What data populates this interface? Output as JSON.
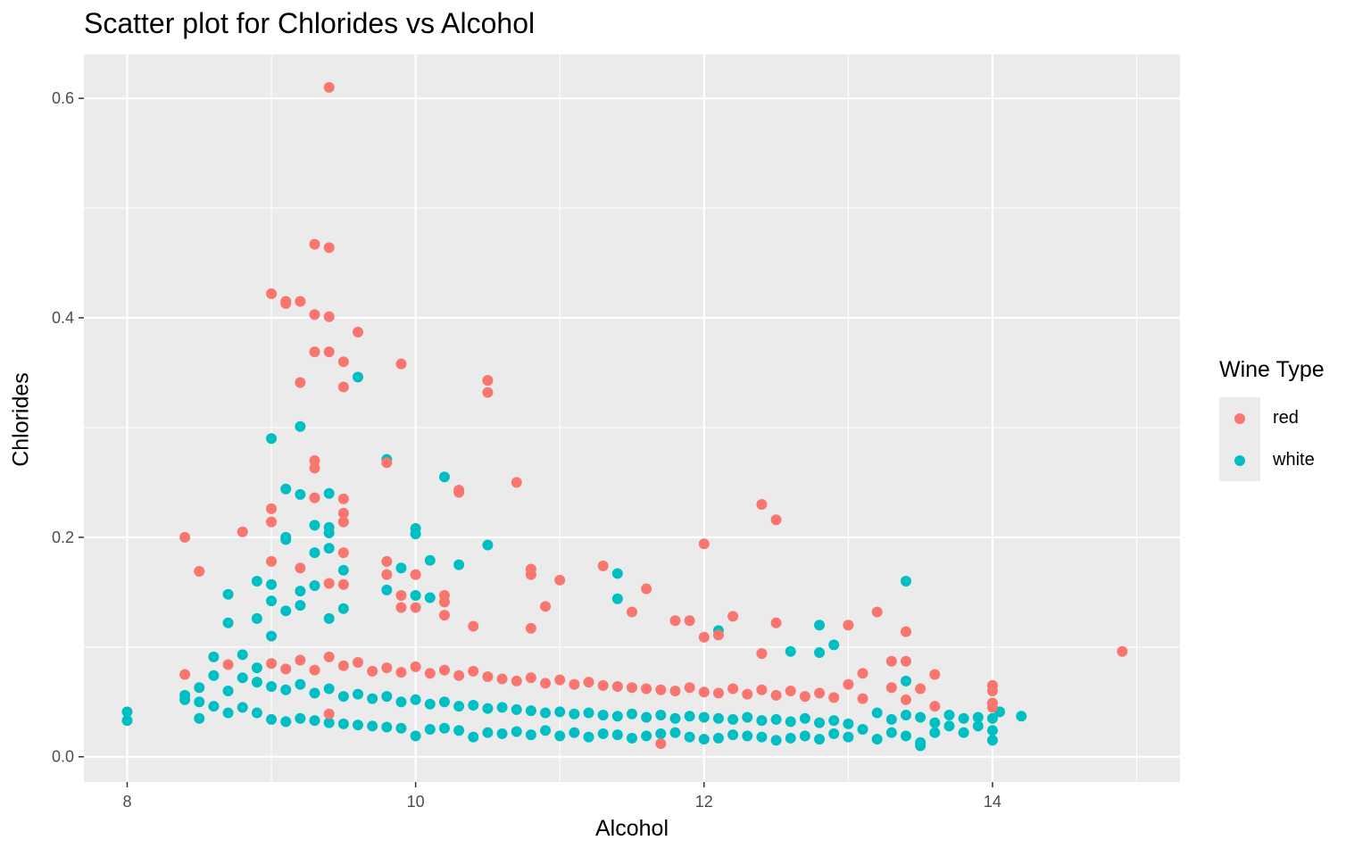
{
  "chart_data": {
    "type": "scatter",
    "title": "Scatter plot for Chlorides vs Alcohol",
    "xlabel": "Alcohol",
    "ylabel": "Chlorides",
    "xlim": [
      7.7,
      15.3
    ],
    "ylim": [
      -0.023,
      0.64
    ],
    "xticks": [
      8,
      10,
      12,
      14
    ],
    "xtick_labels": [
      "8",
      "10",
      "12",
      "14"
    ],
    "yticks": [
      0.0,
      0.2,
      0.4,
      0.6
    ],
    "ytick_labels": [
      "0.0",
      "0.2",
      "0.4",
      "0.6"
    ],
    "grid": true,
    "legend": {
      "title": "Wine Type",
      "position": "right"
    },
    "series": [
      {
        "name": "red",
        "color": "#F8766D",
        "points": [
          [
            9.4,
            0.61
          ],
          [
            9.3,
            0.467
          ],
          [
            9.4,
            0.464
          ],
          [
            9.0,
            0.422
          ],
          [
            9.1,
            0.415
          ],
          [
            9.2,
            0.415
          ],
          [
            9.1,
            0.413
          ],
          [
            9.3,
            0.403
          ],
          [
            9.4,
            0.401
          ],
          [
            9.6,
            0.387
          ],
          [
            9.3,
            0.369
          ],
          [
            9.4,
            0.369
          ],
          [
            9.5,
            0.36
          ],
          [
            9.9,
            0.358
          ],
          [
            10.5,
            0.343
          ],
          [
            9.2,
            0.341
          ],
          [
            9.5,
            0.337
          ],
          [
            10.5,
            0.332
          ],
          [
            9.3,
            0.27
          ],
          [
            9.8,
            0.268
          ],
          [
            9.3,
            0.263
          ],
          [
            10.7,
            0.25
          ],
          [
            10.3,
            0.243
          ],
          [
            10.3,
            0.241
          ],
          [
            9.3,
            0.236
          ],
          [
            9.5,
            0.235
          ],
          [
            12.4,
            0.23
          ],
          [
            9.0,
            0.226
          ],
          [
            9.5,
            0.222
          ],
          [
            12.5,
            0.216
          ],
          [
            9.0,
            0.214
          ],
          [
            9.5,
            0.214
          ],
          [
            8.8,
            0.205
          ],
          [
            8.4,
            0.2
          ],
          [
            12.0,
            0.194
          ],
          [
            9.5,
            0.186
          ],
          [
            9.8,
            0.178
          ],
          [
            9.0,
            0.178
          ],
          [
            11.3,
            0.174
          ],
          [
            9.2,
            0.172
          ],
          [
            10.8,
            0.171
          ],
          [
            8.5,
            0.169
          ],
          [
            9.8,
            0.166
          ],
          [
            10.0,
            0.166
          ],
          [
            10.8,
            0.166
          ],
          [
            11.0,
            0.161
          ],
          [
            9.4,
            0.158
          ],
          [
            9.5,
            0.157
          ],
          [
            11.6,
            0.153
          ],
          [
            9.9,
            0.147
          ],
          [
            10.2,
            0.147
          ],
          [
            10.2,
            0.141
          ],
          [
            10.9,
            0.137
          ],
          [
            9.9,
            0.136
          ],
          [
            10.0,
            0.136
          ],
          [
            11.5,
            0.132
          ],
          [
            13.2,
            0.132
          ],
          [
            10.2,
            0.129
          ],
          [
            12.2,
            0.128
          ],
          [
            11.8,
            0.124
          ],
          [
            11.9,
            0.124
          ],
          [
            12.5,
            0.122
          ],
          [
            13.0,
            0.12
          ],
          [
            10.4,
            0.119
          ],
          [
            10.8,
            0.117
          ],
          [
            13.4,
            0.114
          ],
          [
            12.1,
            0.111
          ],
          [
            12.0,
            0.109
          ],
          [
            14.9,
            0.096
          ],
          [
            12.4,
            0.094
          ],
          [
            13.4,
            0.087
          ],
          [
            13.3,
            0.087
          ],
          [
            13.1,
            0.076
          ],
          [
            13.6,
            0.075
          ],
          [
            8.4,
            0.075
          ],
          [
            8.7,
            0.084
          ],
          [
            9.0,
            0.085
          ],
          [
            9.1,
            0.08
          ],
          [
            9.2,
            0.088
          ],
          [
            9.3,
            0.079
          ],
          [
            9.4,
            0.091
          ],
          [
            9.5,
            0.083
          ],
          [
            9.6,
            0.086
          ],
          [
            9.7,
            0.078
          ],
          [
            9.8,
            0.081
          ],
          [
            9.9,
            0.077
          ],
          [
            10.0,
            0.082
          ],
          [
            10.1,
            0.076
          ],
          [
            10.2,
            0.079
          ],
          [
            10.3,
            0.074
          ],
          [
            10.4,
            0.078
          ],
          [
            10.5,
            0.073
          ],
          [
            10.6,
            0.071
          ],
          [
            10.7,
            0.069
          ],
          [
            10.8,
            0.072
          ],
          [
            10.9,
            0.067
          ],
          [
            11.0,
            0.07
          ],
          [
            11.1,
            0.066
          ],
          [
            11.2,
            0.068
          ],
          [
            11.3,
            0.065
          ],
          [
            11.4,
            0.064
          ],
          [
            11.5,
            0.063
          ],
          [
            11.6,
            0.062
          ],
          [
            11.7,
            0.061
          ],
          [
            11.8,
            0.06
          ],
          [
            11.9,
            0.063
          ],
          [
            12.0,
            0.059
          ],
          [
            12.1,
            0.058
          ],
          [
            12.2,
            0.062
          ],
          [
            12.3,
            0.057
          ],
          [
            12.4,
            0.061
          ],
          [
            12.5,
            0.056
          ],
          [
            12.6,
            0.06
          ],
          [
            12.7,
            0.055
          ],
          [
            12.8,
            0.058
          ],
          [
            12.9,
            0.054
          ],
          [
            13.0,
            0.066
          ],
          [
            13.1,
            0.053
          ],
          [
            13.3,
            0.063
          ],
          [
            13.4,
            0.052
          ],
          [
            13.5,
            0.062
          ],
          [
            13.6,
            0.046
          ],
          [
            14.0,
            0.065
          ],
          [
            14.0,
            0.06
          ],
          [
            14.0,
            0.049
          ],
          [
            14.0,
            0.045
          ],
          [
            11.7,
            0.012
          ],
          [
            9.4,
            0.039
          ]
        ]
      },
      {
        "name": "white",
        "color": "#00BFC4",
        "points": [
          [
            9.6,
            0.346
          ],
          [
            9.2,
            0.301
          ],
          [
            9.0,
            0.29
          ],
          [
            9.8,
            0.271
          ],
          [
            10.2,
            0.255
          ],
          [
            9.1,
            0.244
          ],
          [
            9.4,
            0.24
          ],
          [
            9.2,
            0.239
          ],
          [
            9.3,
            0.211
          ],
          [
            9.4,
            0.209
          ],
          [
            10.0,
            0.208
          ],
          [
            9.4,
            0.204
          ],
          [
            10.0,
            0.203
          ],
          [
            9.1,
            0.2
          ],
          [
            9.1,
            0.198
          ],
          [
            10.5,
            0.193
          ],
          [
            9.4,
            0.19
          ],
          [
            9.3,
            0.186
          ],
          [
            10.1,
            0.179
          ],
          [
            10.3,
            0.175
          ],
          [
            9.9,
            0.172
          ],
          [
            9.5,
            0.17
          ],
          [
            11.4,
            0.167
          ],
          [
            13.4,
            0.16
          ],
          [
            8.9,
            0.16
          ],
          [
            9.0,
            0.157
          ],
          [
            9.3,
            0.156
          ],
          [
            9.8,
            0.152
          ],
          [
            9.2,
            0.151
          ],
          [
            8.7,
            0.148
          ],
          [
            10.0,
            0.147
          ],
          [
            10.1,
            0.145
          ],
          [
            11.4,
            0.144
          ],
          [
            9.0,
            0.142
          ],
          [
            9.2,
            0.138
          ],
          [
            9.5,
            0.135
          ],
          [
            9.1,
            0.133
          ],
          [
            8.9,
            0.126
          ],
          [
            9.4,
            0.126
          ],
          [
            8.7,
            0.122
          ],
          [
            12.8,
            0.12
          ],
          [
            12.1,
            0.115
          ],
          [
            9.0,
            0.11
          ],
          [
            12.9,
            0.102
          ],
          [
            12.6,
            0.096
          ],
          [
            12.8,
            0.095
          ],
          [
            8.8,
            0.093
          ],
          [
            8.6,
            0.091
          ],
          [
            8.9,
            0.081
          ],
          [
            13.4,
            0.069
          ],
          [
            8.0,
            0.041
          ],
          [
            8.0,
            0.033
          ],
          [
            8.4,
            0.056
          ],
          [
            8.4,
            0.052
          ],
          [
            8.5,
            0.063
          ],
          [
            8.5,
            0.05
          ],
          [
            8.5,
            0.035
          ],
          [
            8.6,
            0.074
          ],
          [
            8.6,
            0.046
          ],
          [
            8.7,
            0.06
          ],
          [
            8.7,
            0.04
          ],
          [
            8.8,
            0.072
          ],
          [
            8.8,
            0.045
          ],
          [
            8.9,
            0.068
          ],
          [
            8.9,
            0.04
          ],
          [
            9.0,
            0.064
          ],
          [
            9.0,
            0.034
          ],
          [
            9.1,
            0.061
          ],
          [
            9.1,
            0.032
          ],
          [
            9.2,
            0.066
          ],
          [
            9.2,
            0.035
          ],
          [
            9.3,
            0.058
          ],
          [
            9.3,
            0.033
          ],
          [
            9.4,
            0.062
          ],
          [
            9.4,
            0.031
          ],
          [
            9.5,
            0.055
          ],
          [
            9.5,
            0.03
          ],
          [
            9.6,
            0.057
          ],
          [
            9.6,
            0.029
          ],
          [
            9.7,
            0.053
          ],
          [
            9.7,
            0.028
          ],
          [
            9.8,
            0.055
          ],
          [
            9.8,
            0.027
          ],
          [
            9.9,
            0.05
          ],
          [
            9.9,
            0.026
          ],
          [
            10.0,
            0.052
          ],
          [
            10.0,
            0.019
          ],
          [
            10.1,
            0.048
          ],
          [
            10.1,
            0.025
          ],
          [
            10.2,
            0.05
          ],
          [
            10.2,
            0.026
          ],
          [
            10.3,
            0.046
          ],
          [
            10.3,
            0.024
          ],
          [
            10.4,
            0.047
          ],
          [
            10.4,
            0.018
          ],
          [
            10.5,
            0.044
          ],
          [
            10.5,
            0.022
          ],
          [
            10.6,
            0.045
          ],
          [
            10.6,
            0.021
          ],
          [
            10.7,
            0.043
          ],
          [
            10.7,
            0.023
          ],
          [
            10.8,
            0.042
          ],
          [
            10.8,
            0.02
          ],
          [
            10.9,
            0.04
          ],
          [
            10.9,
            0.024
          ],
          [
            11.0,
            0.041
          ],
          [
            11.0,
            0.019
          ],
          [
            11.1,
            0.039
          ],
          [
            11.1,
            0.022
          ],
          [
            11.2,
            0.04
          ],
          [
            11.2,
            0.018
          ],
          [
            11.3,
            0.038
          ],
          [
            11.3,
            0.021
          ],
          [
            11.4,
            0.037
          ],
          [
            11.4,
            0.02
          ],
          [
            11.5,
            0.039
          ],
          [
            11.5,
            0.017
          ],
          [
            11.6,
            0.036
          ],
          [
            11.6,
            0.019
          ],
          [
            11.7,
            0.038
          ],
          [
            11.7,
            0.021
          ],
          [
            11.8,
            0.035
          ],
          [
            11.8,
            0.022
          ],
          [
            11.9,
            0.037
          ],
          [
            11.9,
            0.018
          ],
          [
            12.0,
            0.036
          ],
          [
            12.0,
            0.016
          ],
          [
            12.1,
            0.035
          ],
          [
            12.1,
            0.017
          ],
          [
            12.2,
            0.034
          ],
          [
            12.2,
            0.02
          ],
          [
            12.3,
            0.036
          ],
          [
            12.3,
            0.019
          ],
          [
            12.4,
            0.033
          ],
          [
            12.4,
            0.018
          ],
          [
            12.5,
            0.034
          ],
          [
            12.5,
            0.015
          ],
          [
            12.6,
            0.032
          ],
          [
            12.6,
            0.017
          ],
          [
            12.7,
            0.035
          ],
          [
            12.7,
            0.019
          ],
          [
            12.8,
            0.031
          ],
          [
            12.8,
            0.016
          ],
          [
            12.9,
            0.033
          ],
          [
            12.9,
            0.021
          ],
          [
            13.0,
            0.03
          ],
          [
            13.0,
            0.018
          ],
          [
            13.1,
            0.025
          ],
          [
            13.2,
            0.016
          ],
          [
            13.2,
            0.04
          ],
          [
            13.3,
            0.034
          ],
          [
            13.3,
            0.022
          ],
          [
            13.4,
            0.038
          ],
          [
            13.4,
            0.019
          ],
          [
            13.5,
            0.036
          ],
          [
            13.5,
            0.013
          ],
          [
            13.5,
            0.01
          ],
          [
            13.6,
            0.031
          ],
          [
            13.6,
            0.022
          ],
          [
            13.7,
            0.038
          ],
          [
            13.7,
            0.028
          ],
          [
            13.8,
            0.035
          ],
          [
            13.8,
            0.022
          ],
          [
            13.9,
            0.036
          ],
          [
            13.9,
            0.028
          ],
          [
            14.0,
            0.035
          ],
          [
            14.0,
            0.024
          ],
          [
            14.0,
            0.015
          ],
          [
            14.05,
            0.041
          ],
          [
            14.2,
            0.037
          ]
        ]
      }
    ]
  }
}
